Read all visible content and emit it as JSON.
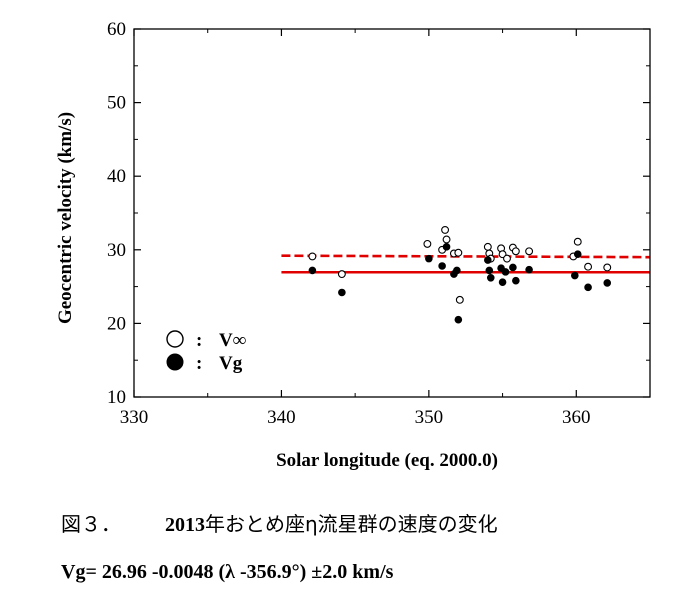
{
  "chart_data": {
    "type": "scatter",
    "title": "",
    "xlabel": "Solar longitude (eq. 2000.0)",
    "ylabel": "Geocentric velocity (km/s)",
    "xlim": [
      330,
      365
    ],
    "ylim": [
      10,
      60
    ],
    "xticks": [
      330,
      340,
      350,
      360
    ],
    "yticks": [
      10,
      20,
      30,
      40,
      50,
      60
    ],
    "x_tick_labels": [
      "330",
      "340",
      "350",
      "360"
    ],
    "y_tick_labels": [
      "10",
      "20",
      "30",
      "40",
      "50",
      "60"
    ],
    "grid": false,
    "legend_position": "bottom-left",
    "legend": [
      {
        "symbol": "open-circle",
        "sep": ":",
        "label": "V∞"
      },
      {
        "symbol": "filled-circle",
        "sep": ":",
        "label": "Vg"
      }
    ],
    "series": [
      {
        "name": "V∞",
        "marker": "open-circle",
        "points": [
          [
            342.1,
            29.1
          ],
          [
            344.1,
            26.7
          ],
          [
            349.9,
            30.8
          ],
          [
            350.9,
            30.0
          ],
          [
            351.1,
            32.7
          ],
          [
            351.2,
            31.4
          ],
          [
            351.7,
            29.5
          ],
          [
            352.0,
            29.6
          ],
          [
            352.1,
            23.2
          ],
          [
            354.0,
            30.4
          ],
          [
            354.1,
            29.5
          ],
          [
            354.2,
            28.8
          ],
          [
            354.9,
            30.2
          ],
          [
            355.0,
            29.4
          ],
          [
            355.3,
            28.8
          ],
          [
            355.7,
            30.3
          ],
          [
            355.9,
            29.8
          ],
          [
            356.8,
            29.8
          ],
          [
            359.8,
            29.1
          ],
          [
            360.1,
            31.1
          ],
          [
            360.8,
            27.7
          ],
          [
            362.1,
            27.6
          ]
        ]
      },
      {
        "name": "Vg",
        "marker": "filled-circle",
        "points": [
          [
            342.1,
            27.2
          ],
          [
            344.1,
            24.2
          ],
          [
            350.0,
            28.8
          ],
          [
            350.9,
            27.8
          ],
          [
            351.2,
            30.4
          ],
          [
            351.7,
            26.7
          ],
          [
            351.9,
            27.2
          ],
          [
            352.0,
            20.5
          ],
          [
            354.0,
            28.6
          ],
          [
            354.1,
            27.2
          ],
          [
            354.2,
            26.2
          ],
          [
            354.9,
            27.5
          ],
          [
            355.0,
            25.6
          ],
          [
            355.2,
            27.0
          ],
          [
            355.7,
            27.6
          ],
          [
            355.9,
            25.8
          ],
          [
            356.8,
            27.3
          ],
          [
            359.9,
            26.5
          ],
          [
            360.1,
            29.4
          ],
          [
            360.8,
            24.9
          ],
          [
            362.1,
            25.5
          ]
        ]
      }
    ],
    "fit_lines": [
      {
        "name": "V∞ fit",
        "style": "dashed",
        "color": "#e00000",
        "points": [
          [
            340,
            29.2
          ],
          [
            365,
            29.0
          ]
        ]
      },
      {
        "name": "Vg fit",
        "style": "solid",
        "color": "#e00000",
        "points": [
          [
            340,
            26.95
          ],
          [
            365,
            26.95
          ]
        ]
      }
    ]
  },
  "caption": {
    "figure_label": "図３．",
    "year": "2013",
    "title_jp": "年おとめ座η流星群の速度の変化",
    "formula": "Vg= 26.96 -0.0048 (λ -356.9°) ±2.0 km/s"
  },
  "colors": {
    "fit_line": "#e00000",
    "axis": "#000000",
    "marker": "#000000"
  }
}
